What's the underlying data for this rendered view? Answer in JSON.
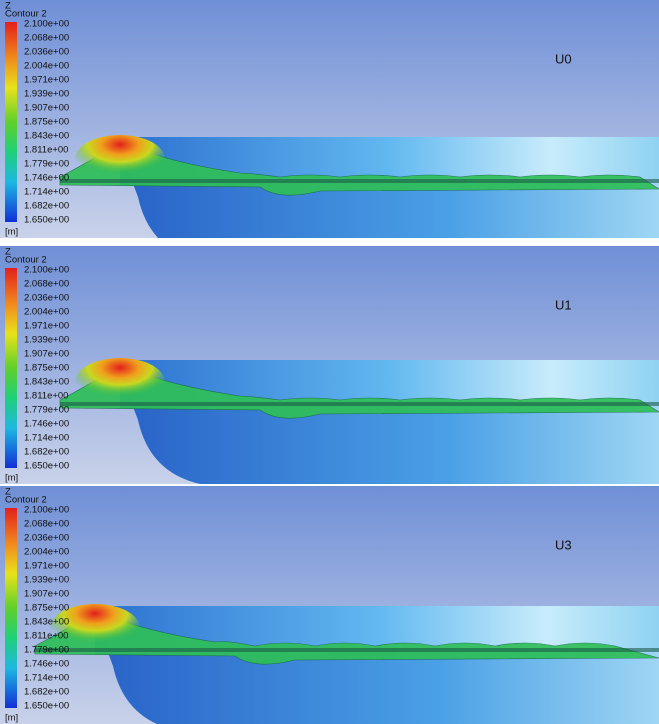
{
  "panels": [
    {
      "variable": "Z",
      "title": "Contour 2",
      "ticks": [
        "2.100e+00",
        "2.068e+00",
        "2.036e+00",
        "2.004e+00",
        "1.971e+00",
        "1.939e+00",
        "1.907e+00",
        "1.875e+00",
        "1.843e+00",
        "1.811e+00",
        "1.779e+00",
        "1.746e+00",
        "1.714e+00",
        "1.682e+00",
        "1.650e+00"
      ],
      "unit": "[m]",
      "label": "U0"
    },
    {
      "variable": "Z",
      "title": "Contour 2",
      "ticks": [
        "2.100e+00",
        "2.068e+00",
        "2.036e+00",
        "2.004e+00",
        "1.971e+00",
        "1.939e+00",
        "1.907e+00",
        "1.875e+00",
        "1.843e+00",
        "1.811e+00",
        "1.779e+00",
        "1.746e+00",
        "1.714e+00",
        "1.682e+00",
        "1.650e+00"
      ],
      "unit": "[m]",
      "label": "U1"
    },
    {
      "variable": "Z",
      "title": "Contour 2",
      "ticks": [
        "2.100e+00",
        "2.068e+00",
        "2.036e+00",
        "2.004e+00",
        "1.971e+00",
        "1.939e+00",
        "1.907e+00",
        "1.875e+00",
        "1.843e+00",
        "1.811e+00",
        "1.779e+00",
        "1.746e+00",
        "1.714e+00",
        "1.682e+00",
        "1.650e+00"
      ],
      "unit": "[m]",
      "label": "U3"
    }
  ]
}
